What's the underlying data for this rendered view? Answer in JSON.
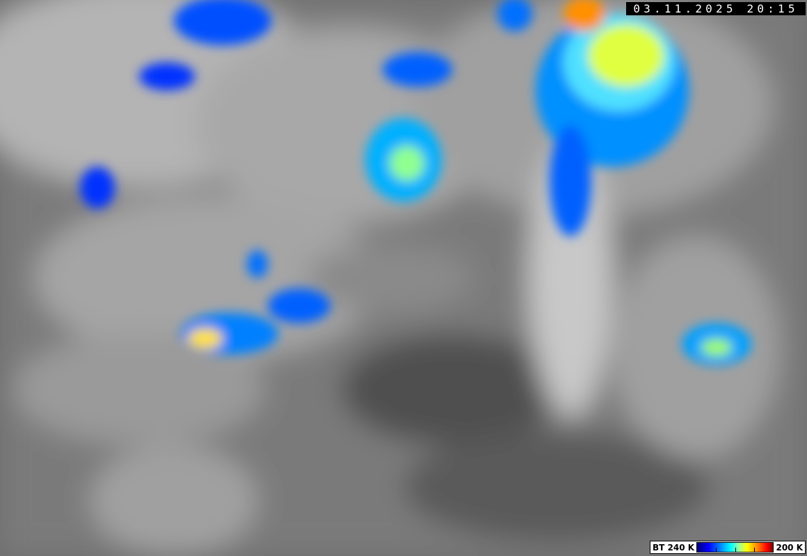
{
  "timestamp": "03.11.2025 20:15",
  "colorbar": {
    "left_label": "BT 240 K",
    "right_label": "200 K",
    "colors": [
      "#00007a",
      "#0000ff",
      "#0090ff",
      "#00ffff",
      "#ffff00",
      "#ff8000",
      "#ff0000",
      "#800000"
    ]
  }
}
